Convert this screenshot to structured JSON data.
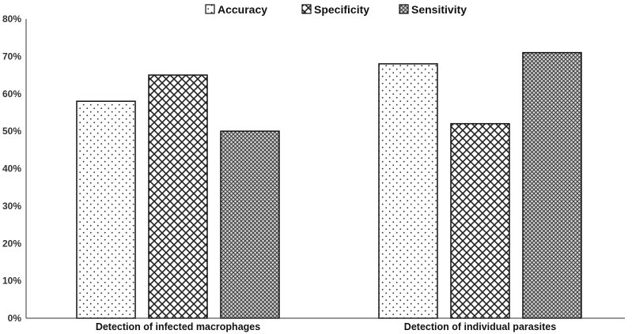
{
  "chart_data": {
    "type": "bar",
    "title": "",
    "xlabel": "",
    "ylabel": "",
    "categories": [
      "Detection of infected macrophages",
      "Detection of individual parasites"
    ],
    "series": [
      {
        "name": "Accuracy",
        "values": [
          58,
          68
        ],
        "pattern": "dots"
      },
      {
        "name": "Specificity",
        "values": [
          65,
          52
        ],
        "pattern": "diagonal-cross"
      },
      {
        "name": "Sensitivity",
        "values": [
          50,
          71
        ],
        "pattern": "dense-cross"
      }
    ],
    "ylim": [
      0,
      80
    ],
    "yticks": [
      0,
      10,
      20,
      30,
      40,
      50,
      60,
      70,
      80
    ],
    "ytick_format": "%",
    "grid": false,
    "legend_position": "top-center"
  },
  "colors": {
    "bar_stroke": "#111111",
    "pattern_ink": "#222222",
    "axis": "#333333",
    "background": "#ffffff"
  }
}
